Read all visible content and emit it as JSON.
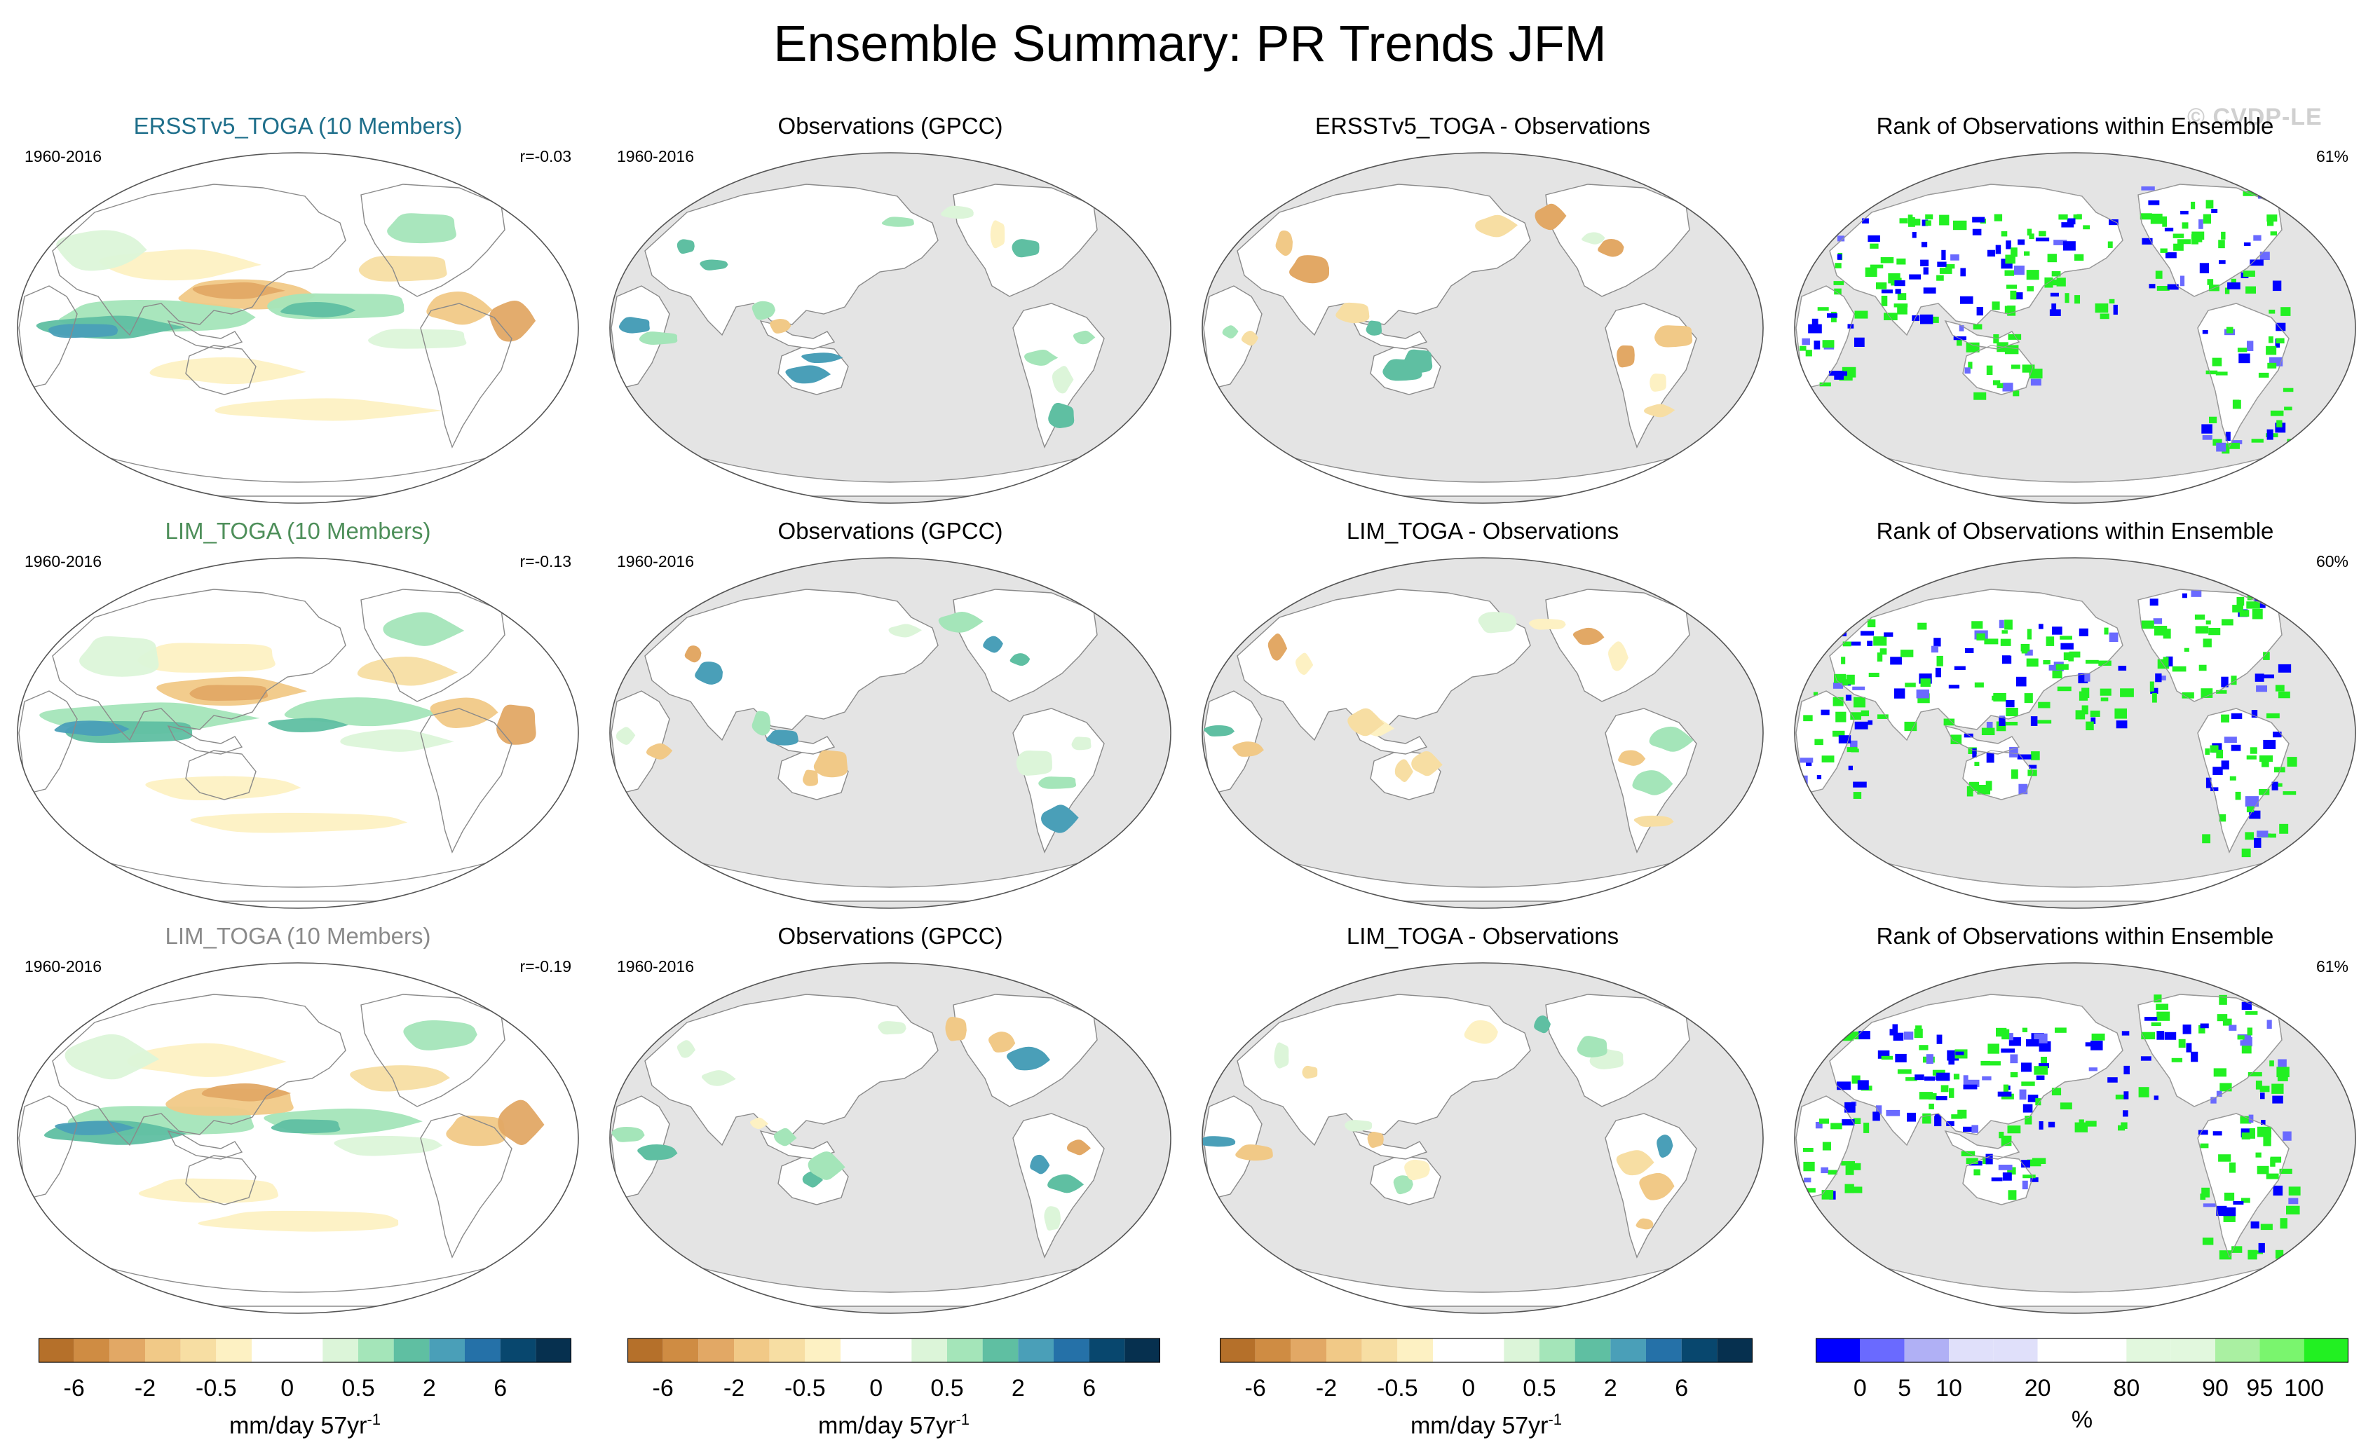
{
  "title": "Ensemble Summary: PR Trends JFM",
  "watermark": "© CVDP-LE",
  "rows": [
    {
      "panels": [
        {
          "title": "ERSSTv5_TOGA (10 Members)",
          "title_color": "#1f6f8b",
          "period": "1960-2016",
          "stat": "r=-0.03",
          "type": "model"
        },
        {
          "title": "Observations (GPCC)",
          "title_color": "#000000",
          "period": "1960-2016",
          "stat": "",
          "type": "obs"
        },
        {
          "title": "ERSSTv5_TOGA - Observations",
          "title_color": "#000000",
          "period": "",
          "stat": "",
          "type": "diff"
        },
        {
          "title": "Rank of Observations within Ensemble",
          "title_color": "#000000",
          "period": "",
          "stat": "61%",
          "type": "rank"
        }
      ]
    },
    {
      "panels": [
        {
          "title": "LIM_TOGA (10 Members)",
          "title_color": "#4e8f5a",
          "period": "1960-2016",
          "stat": "r=-0.13",
          "type": "model"
        },
        {
          "title": "Observations (GPCC)",
          "title_color": "#000000",
          "period": "1960-2016",
          "stat": "",
          "type": "obs"
        },
        {
          "title": "LIM_TOGA - Observations",
          "title_color": "#000000",
          "period": "",
          "stat": "",
          "type": "diff"
        },
        {
          "title": "Rank of Observations within Ensemble",
          "title_color": "#000000",
          "period": "",
          "stat": "60%",
          "type": "rank"
        }
      ]
    },
    {
      "panels": [
        {
          "title": "LIM_TOGA (10 Members)",
          "title_color": "#8a8a8a",
          "period": "1960-2016",
          "stat": "r=-0.19",
          "type": "model"
        },
        {
          "title": "Observations (GPCC)",
          "title_color": "#000000",
          "period": "1960-2016",
          "stat": "",
          "type": "obs"
        },
        {
          "title": "LIM_TOGA - Observations",
          "title_color": "#000000",
          "period": "",
          "stat": "",
          "type": "diff"
        },
        {
          "title": "Rank of Observations within Ensemble",
          "title_color": "#000000",
          "period": "",
          "stat": "61%",
          "type": "rank"
        }
      ]
    }
  ],
  "colorbars": {
    "trend": {
      "label": "mm/day 57yr",
      "label_sup": "-1",
      "colors": [
        "#b5702a",
        "#cf8c43",
        "#e2a865",
        "#f1c987",
        "#f7dea3",
        "#fdf1c3",
        "#ffffff",
        "#ffffff",
        "#dcf5d9",
        "#a4e5b9",
        "#5fbfa2",
        "#4a9fb8",
        "#2571a8",
        "#08476e",
        "#06304f"
      ],
      "ticks": [
        "-6",
        "-2",
        "-0.5",
        "0",
        "0.5",
        "2",
        "6"
      ],
      "tick_positions": [
        1,
        3,
        5,
        7,
        9,
        11,
        13
      ]
    },
    "rank": {
      "label": "%",
      "colors": [
        "#0000ff",
        "#6a6aff",
        "#b0b0f5",
        "#e0e0fa",
        "#e0e0fa",
        "#ffffff",
        "#ffffff",
        "#e2f8de",
        "#e2f8de",
        "#aaf0a2",
        "#7af56e",
        "#22f022"
      ],
      "ticks": [
        "0",
        "5",
        "10",
        "20",
        "80",
        "90",
        "95",
        "100"
      ],
      "tick_positions": [
        1,
        2,
        3,
        5,
        7,
        9,
        10,
        11
      ]
    }
  }
}
